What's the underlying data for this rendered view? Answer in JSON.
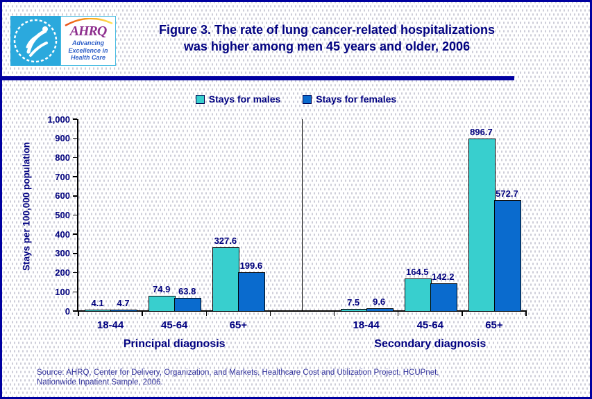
{
  "figure": {
    "title_line1": "Figure 3. The rate of lung cancer-related hospitalizations",
    "title_line2": "was higher among men 45 years and older, 2006"
  },
  "logo": {
    "acronym": "AHRQ",
    "tagline_line1": "Advancing",
    "tagline_line2": "Excellence in",
    "tagline_line3": "Health Care",
    "colors": {
      "hhs_cyan": "#2BA9DD",
      "ahrq_purple": "#8E2F8E",
      "tagline_blue": "#2E5FC8"
    }
  },
  "legend": {
    "items": [
      {
        "label": "Stays for males",
        "color": "#38CFCE"
      },
      {
        "label": "Stays for females",
        "color": "#0A6BCE"
      }
    ]
  },
  "chart_data": {
    "type": "bar",
    "title": "",
    "xlabel": "",
    "ylabel": "Stays per 100,000 population",
    "ylim": [
      0,
      1000
    ],
    "ytick_values": [
      0,
      100,
      200,
      300,
      400,
      500,
      600,
      700,
      800,
      900,
      1000
    ],
    "ytick_labels": [
      "0",
      "100",
      "200",
      "300",
      "400",
      "500",
      "600",
      "700",
      "800",
      "900",
      "1,000"
    ],
    "grid": false,
    "legend_position": "top-center",
    "bar_colors": {
      "males": "#38CFCE",
      "females": "#0A6BCE"
    },
    "groups": [
      {
        "label": "Principal diagnosis",
        "categories": [
          "18-44",
          "45-64",
          "65+"
        ],
        "series": [
          {
            "name": "Stays for males",
            "color": "#38CFCE",
            "values": [
              4.1,
              74.9,
              327.6
            ]
          },
          {
            "name": "Stays for females",
            "color": "#0A6BCE",
            "values": [
              4.7,
              63.8,
              199.6
            ]
          }
        ]
      },
      {
        "label": "Secondary diagnosis",
        "categories": [
          "18-44",
          "45-64",
          "65+"
        ],
        "series": [
          {
            "name": "Stays for males",
            "color": "#38CFCE",
            "values": [
              7.5,
              164.5,
              896.7
            ]
          },
          {
            "name": "Stays for females",
            "color": "#0A6BCE",
            "values": [
              9.6,
              142.2,
              572.7
            ]
          }
        ]
      }
    ]
  },
  "source": {
    "line1": "Source: AHRQ, Center for Delivery, Organization, and Markets, Healthcare Cost and Utilization Project, HCUPnet,",
    "line2": "Nationwide Inpatient Sample, 2006."
  }
}
